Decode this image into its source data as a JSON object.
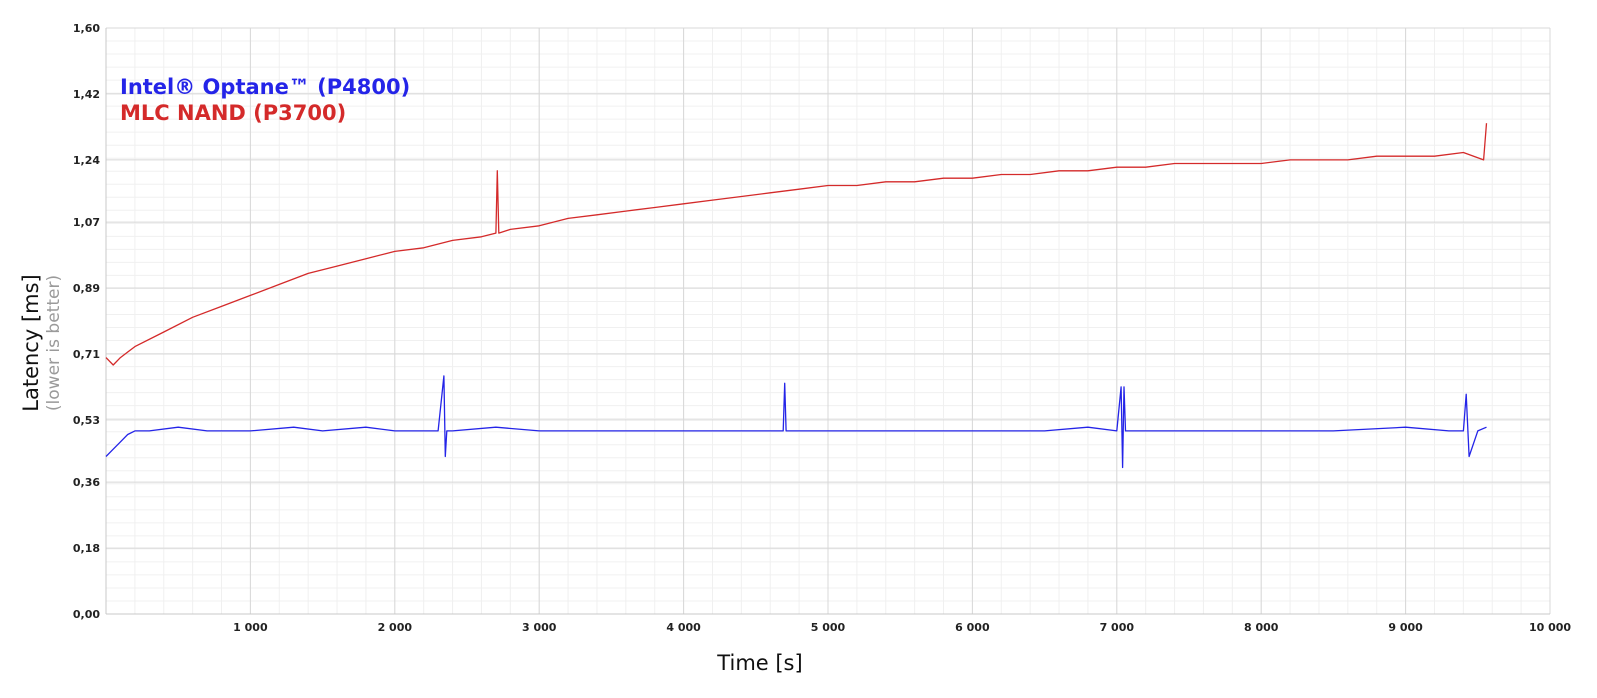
{
  "chart_data": {
    "type": "line",
    "xlabel": "Time [s]",
    "ylabel": "Latency [ms]",
    "ylabel_sub": "(lower is better)",
    "xlim": [
      0,
      10000
    ],
    "ylim": [
      0,
      1.6
    ],
    "x_ticks": [
      1000,
      2000,
      3000,
      4000,
      5000,
      6000,
      7000,
      8000,
      9000,
      10000
    ],
    "x_tick_labels": [
      "1 000",
      "2 000",
      "3 000",
      "4 000",
      "5 000",
      "6 000",
      "7 000",
      "8 000",
      "9 000",
      "10 000"
    ],
    "y_ticks": [
      0,
      0.18,
      0.36,
      0.53,
      0.71,
      0.89,
      1.07,
      1.24,
      1.42,
      1.6
    ],
    "y_tick_labels": [
      "0,00",
      "0,18",
      "0,36",
      "0,53",
      "0,71",
      "0,89",
      "1,07",
      "1,24",
      "1,42",
      "1,60"
    ],
    "grid": true,
    "legend_position": "top-left",
    "series": [
      {
        "name": "Intel® Optane™ (P4800)",
        "color": "#2424e8",
        "x": [
          0,
          50,
          100,
          150,
          200,
          300,
          500,
          700,
          1000,
          1300,
          1500,
          1800,
          2000,
          2300,
          2340,
          2350,
          2360,
          2400,
          2700,
          3000,
          3500,
          4000,
          4500,
          4690,
          4700,
          4710,
          5000,
          5500,
          6000,
          6500,
          6800,
          7000,
          7030,
          7040,
          7050,
          7060,
          7100,
          7500,
          8000,
          8500,
          9000,
          9300,
          9400,
          9420,
          9440,
          9500,
          9560
        ],
        "values": [
          0.43,
          0.45,
          0.47,
          0.49,
          0.5,
          0.5,
          0.51,
          0.5,
          0.5,
          0.51,
          0.5,
          0.51,
          0.5,
          0.5,
          0.65,
          0.43,
          0.5,
          0.5,
          0.51,
          0.5,
          0.5,
          0.5,
          0.5,
          0.5,
          0.63,
          0.5,
          0.5,
          0.5,
          0.5,
          0.5,
          0.51,
          0.5,
          0.62,
          0.4,
          0.62,
          0.5,
          0.5,
          0.5,
          0.5,
          0.5,
          0.51,
          0.5,
          0.5,
          0.6,
          0.43,
          0.5,
          0.51
        ]
      },
      {
        "name": "MLC NAND (P3700)",
        "color": "#d42a2a",
        "x": [
          0,
          50,
          100,
          200,
          400,
          600,
          800,
          1000,
          1200,
          1400,
          1600,
          1800,
          2000,
          2200,
          2400,
          2600,
          2700,
          2710,
          2720,
          2800,
          3000,
          3200,
          3400,
          3600,
          3800,
          4000,
          4200,
          4400,
          4600,
          4800,
          5000,
          5200,
          5400,
          5600,
          5800,
          6000,
          6200,
          6400,
          6600,
          6800,
          7000,
          7200,
          7400,
          7600,
          7800,
          8000,
          8200,
          8400,
          8600,
          8800,
          9000,
          9200,
          9400,
          9540,
          9560
        ],
        "values": [
          0.7,
          0.68,
          0.7,
          0.73,
          0.77,
          0.81,
          0.84,
          0.87,
          0.9,
          0.93,
          0.95,
          0.97,
          0.99,
          1.0,
          1.02,
          1.03,
          1.04,
          1.21,
          1.04,
          1.05,
          1.06,
          1.08,
          1.09,
          1.1,
          1.11,
          1.12,
          1.13,
          1.14,
          1.15,
          1.16,
          1.17,
          1.17,
          1.18,
          1.18,
          1.19,
          1.19,
          1.2,
          1.2,
          1.21,
          1.21,
          1.22,
          1.22,
          1.23,
          1.23,
          1.23,
          1.23,
          1.24,
          1.24,
          1.24,
          1.25,
          1.25,
          1.25,
          1.26,
          1.24,
          1.34
        ]
      }
    ]
  }
}
